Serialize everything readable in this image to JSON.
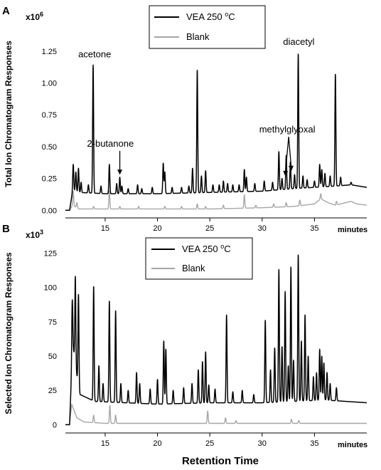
{
  "figure": {
    "xlabel": "Retention Time"
  },
  "chart_data": [
    {
      "panel": "A",
      "type": "line",
      "ylabel": "Total Ion Chromatogram Responses",
      "y_multiplier": "x10",
      "y_exponent": "6",
      "x_unit": "minutes",
      "xlim": [
        11.2,
        40
      ],
      "ylim": [
        -0.06,
        1.45
      ],
      "x_ticks": [
        15,
        20,
        25,
        30,
        35
      ],
      "y_ticks": [
        0.0,
        0.25,
        0.5,
        0.75,
        1.0,
        1.25
      ],
      "y_tick_labels": [
        "0.00",
        "0.25",
        "0.50",
        "0.75",
        "1.00",
        "1.25"
      ],
      "legend": {
        "placement": "top-center",
        "entries": [
          "VEA 250 oC",
          "Blank"
        ],
        "entry1_main": "VEA 250 ",
        "entry1_sup": "o",
        "entry1_unit": "C"
      },
      "series": [
        {
          "name": "VEA 250 oC",
          "color": "#000000",
          "baseline": [
            [
              11.6,
              0.0
            ],
            [
              11.9,
              0.16
            ],
            [
              12.5,
              0.14
            ],
            [
              15,
              0.13
            ],
            [
              20,
              0.13
            ],
            [
              25,
              0.14
            ],
            [
              30,
              0.15
            ],
            [
              33,
              0.17
            ],
            [
              35,
              0.18
            ],
            [
              37,
              0.19
            ],
            [
              38.5,
              0.2
            ],
            [
              40,
              0.18
            ]
          ],
          "peaks": [
            [
              11.95,
              0.36
            ],
            [
              12.2,
              0.3
            ],
            [
              12.45,
              0.33
            ],
            [
              12.7,
              0.22
            ],
            [
              13.4,
              0.2
            ],
            [
              13.85,
              1.14
            ],
            [
              14.6,
              0.19
            ],
            [
              15.4,
              0.36
            ],
            [
              16.1,
              0.21
            ],
            [
              16.4,
              0.26
            ],
            [
              16.6,
              0.19
            ],
            [
              17.2,
              0.17
            ],
            [
              18.1,
              0.2
            ],
            [
              18.5,
              0.17
            ],
            [
              19.5,
              0.18
            ],
            [
              20.55,
              0.37
            ],
            [
              20.7,
              0.3
            ],
            [
              21.4,
              0.18
            ],
            [
              22.3,
              0.18
            ],
            [
              23.0,
              0.19
            ],
            [
              23.35,
              0.33
            ],
            [
              23.8,
              1.1
            ],
            [
              24.2,
              0.27
            ],
            [
              24.6,
              0.31
            ],
            [
              25.3,
              0.2
            ],
            [
              25.9,
              0.2
            ],
            [
              26.3,
              0.23
            ],
            [
              26.7,
              0.21
            ],
            [
              27.2,
              0.2
            ],
            [
              27.8,
              0.2
            ],
            [
              28.3,
              0.32
            ],
            [
              28.5,
              0.26
            ],
            [
              29.3,
              0.21
            ],
            [
              30.2,
              0.23
            ],
            [
              31.0,
              0.22
            ],
            [
              31.6,
              0.46
            ],
            [
              31.9,
              0.25
            ],
            [
              32.3,
              0.43
            ],
            [
              32.7,
              0.38
            ],
            [
              33.1,
              0.28
            ],
            [
              33.45,
              1.23
            ],
            [
              33.9,
              0.27
            ],
            [
              34.3,
              0.24
            ],
            [
              35.0,
              0.23
            ],
            [
              35.5,
              0.36
            ],
            [
              35.7,
              0.32
            ],
            [
              36.0,
              0.29
            ],
            [
              36.5,
              0.27
            ],
            [
              37.0,
              1.07
            ],
            [
              37.5,
              0.26
            ],
            [
              38.5,
              0.22
            ]
          ]
        },
        {
          "name": "Blank",
          "color": "#a6a6a6",
          "baseline": [
            [
              11.6,
              0.0
            ],
            [
              11.9,
              0.04
            ],
            [
              12.5,
              0.01
            ],
            [
              15,
              0.01
            ],
            [
              20,
              0.01
            ],
            [
              25,
              0.01
            ],
            [
              30,
              0.02
            ],
            [
              33,
              0.03
            ],
            [
              35,
              0.05
            ],
            [
              35.6,
              0.09
            ],
            [
              36.3,
              0.06
            ],
            [
              37,
              0.04
            ],
            [
              38.5,
              0.07
            ],
            [
              39,
              0.05
            ],
            [
              40,
              0.04
            ]
          ],
          "peaks": [
            [
              11.95,
              0.15
            ],
            [
              12.3,
              0.06
            ],
            [
              13.9,
              0.03
            ],
            [
              15.4,
              0.15
            ],
            [
              16.4,
              0.03
            ],
            [
              18.2,
              0.03
            ],
            [
              20.7,
              0.03
            ],
            [
              22.3,
              0.03
            ],
            [
              23.8,
              0.05
            ],
            [
              24.6,
              0.03
            ],
            [
              26.3,
              0.04
            ],
            [
              28.3,
              0.12
            ],
            [
              29.4,
              0.04
            ],
            [
              31.1,
              0.05
            ],
            [
              32.3,
              0.06
            ],
            [
              33.6,
              0.08
            ],
            [
              35.6,
              0.13
            ],
            [
              37.1,
              0.07
            ]
          ]
        }
      ],
      "annotations": [
        {
          "text": "acetone",
          "x": 14.0,
          "y": 1.2
        },
        {
          "text": "2-butanone",
          "x": 15.5,
          "y": 0.5,
          "arrow_to": [
            16.4,
            0.28
          ]
        },
        {
          "text": "methylglyoxal",
          "x": 32.4,
          "y": 0.61,
          "arrow_to": [
            [
              32.2,
              0.27
            ],
            [
              32.8,
              0.31
            ]
          ]
        },
        {
          "text": "diacetyl",
          "x": 33.5,
          "y": 1.3
        }
      ]
    },
    {
      "panel": "B",
      "type": "line",
      "ylabel": "Selected Ion Chromatogram Responses",
      "y_multiplier": "x10",
      "y_exponent": "3",
      "x_unit": "minutes",
      "xlim": [
        11.2,
        40
      ],
      "ylim": [
        -6,
        133
      ],
      "x_ticks": [
        15,
        20,
        25,
        30,
        35
      ],
      "y_ticks": [
        0,
        25,
        50,
        75,
        100,
        125
      ],
      "y_tick_labels": [
        "0",
        "25",
        "50",
        "75",
        "100",
        "125"
      ],
      "legend": {
        "placement": "top-center",
        "entries": [
          "VEA 250 oC",
          "Blank"
        ],
        "entry1_main": "VEA 250 ",
        "entry1_sup": "o",
        "entry1_unit": "C"
      },
      "series": [
        {
          "name": "VEA 250 oC",
          "color": "#000000",
          "baseline": [
            [
              11.6,
              0
            ],
            [
              11.9,
              60
            ],
            [
              12.2,
              40
            ],
            [
              12.6,
              22
            ],
            [
              14,
              17
            ],
            [
              20,
              15
            ],
            [
              25,
              16
            ],
            [
              30,
              16
            ],
            [
              33,
              17
            ],
            [
              36,
              18
            ],
            [
              38,
              17
            ],
            [
              40,
              16
            ]
          ],
          "peaks": [
            [
              11.85,
              90
            ],
            [
              12.15,
              108
            ],
            [
              12.45,
              95
            ],
            [
              13.9,
              101
            ],
            [
              14.4,
              43
            ],
            [
              14.8,
              30
            ],
            [
              15.4,
              90
            ],
            [
              16.0,
              83
            ],
            [
              16.5,
              30
            ],
            [
              17.2,
              25
            ],
            [
              18.0,
              38
            ],
            [
              18.3,
              30
            ],
            [
              19.3,
              26
            ],
            [
              20.0,
              33
            ],
            [
              20.6,
              61
            ],
            [
              20.8,
              55
            ],
            [
              21.5,
              25
            ],
            [
              22.5,
              27
            ],
            [
              23.3,
              30
            ],
            [
              23.9,
              40
            ],
            [
              24.3,
              46
            ],
            [
              24.6,
              53
            ],
            [
              24.9,
              29
            ],
            [
              25.5,
              26
            ],
            [
              26.6,
              80
            ],
            [
              27.2,
              24
            ],
            [
              28.1,
              25
            ],
            [
              29.2,
              22
            ],
            [
              30.3,
              76
            ],
            [
              30.8,
              40
            ],
            [
              31.2,
              56
            ],
            [
              31.6,
              113
            ],
            [
              31.9,
              57
            ],
            [
              32.2,
              97
            ],
            [
              32.5,
              43
            ],
            [
              32.75,
              115
            ],
            [
              33.0,
              47
            ],
            [
              33.45,
              124
            ],
            [
              33.75,
              61
            ],
            [
              34.1,
              80
            ],
            [
              34.4,
              50
            ],
            [
              34.9,
              35
            ],
            [
              35.2,
              38
            ],
            [
              35.5,
              55
            ],
            [
              35.7,
              50
            ],
            [
              35.9,
              45
            ],
            [
              36.2,
              38
            ],
            [
              36.5,
              30
            ],
            [
              37.1,
              27
            ]
          ]
        },
        {
          "name": "Blank",
          "color": "#a6a6a6",
          "baseline": [
            [
              11.6,
              0
            ],
            [
              11.8,
              15
            ],
            [
              12.3,
              5
            ],
            [
              13,
              2
            ],
            [
              15,
              1
            ],
            [
              20,
              1
            ],
            [
              30,
              1
            ],
            [
              40,
              1
            ]
          ],
          "peaks": [
            [
              13.9,
              7
            ],
            [
              15.45,
              14
            ],
            [
              16.0,
              7
            ],
            [
              24.8,
              10
            ],
            [
              26.5,
              5
            ],
            [
              27.5,
              3
            ],
            [
              32.8,
              4
            ],
            [
              33.5,
              3
            ]
          ]
        }
      ],
      "annotations": []
    }
  ]
}
